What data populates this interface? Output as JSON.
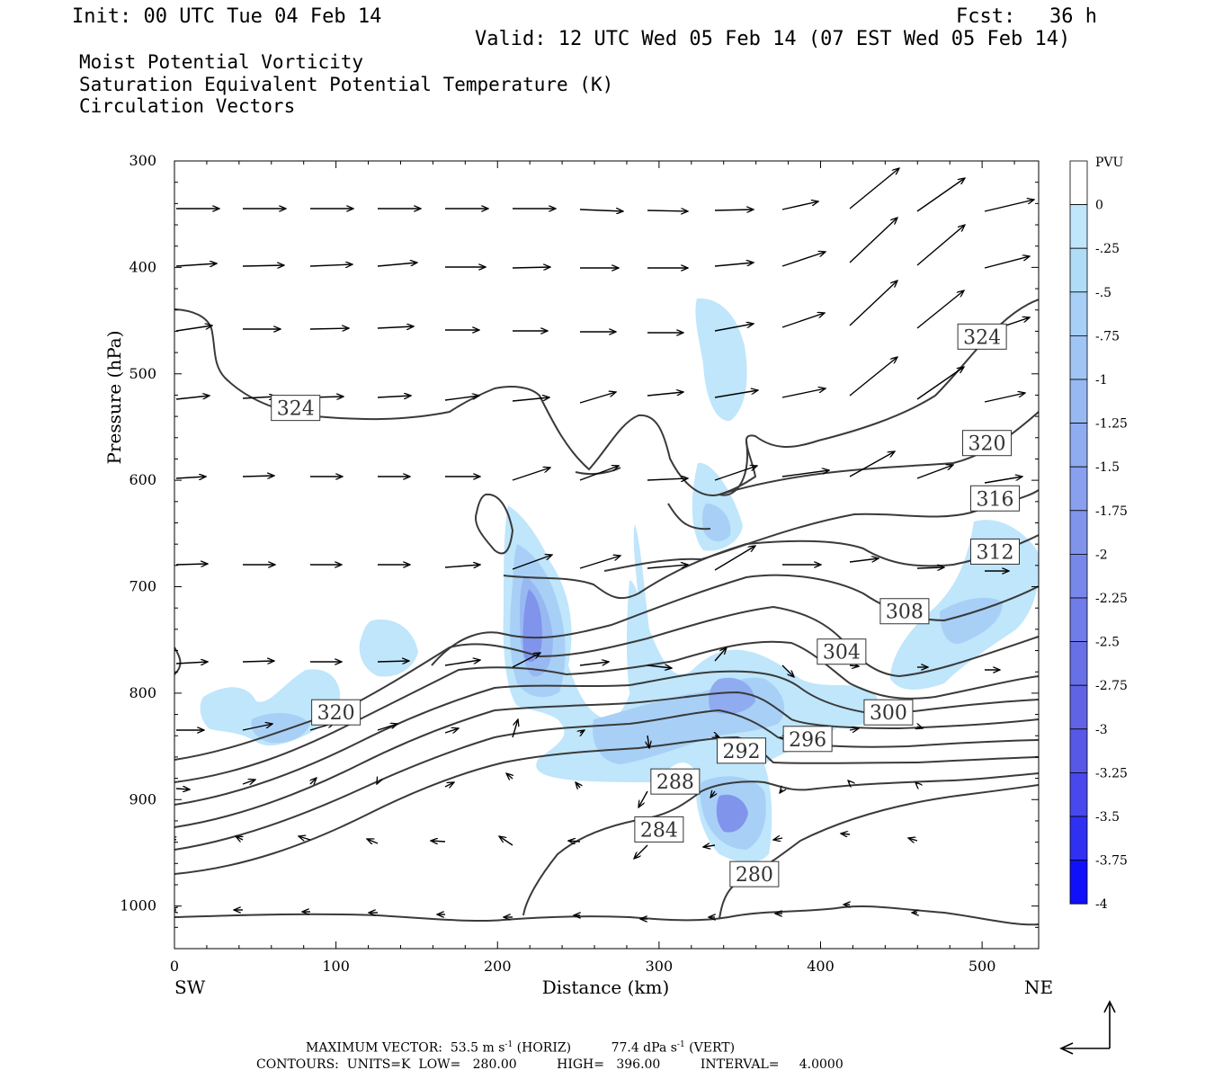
{
  "header": {
    "init": "Init: 00 UTC Tue 04 Feb 14",
    "fcst_label": "Fcst:",
    "fcst_value": "36 h",
    "valid": "Valid: 12 UTC Wed 05 Feb 14 (07 EST Wed 05 Feb 14)"
  },
  "layers": [
    {
      "name": "Moist Potential Vorticity",
      "color": "#000000"
    },
    {
      "name": "Saturation Equivalent Potential Temperature (K)",
      "color": "#808080"
    },
    {
      "name": "Circulation Vectors",
      "color": "#000000"
    }
  ],
  "chart_data": {
    "type": "contour",
    "xlabel": "Distance (km)",
    "ylabel": "Pressure (hPa)",
    "xlim": [
      0,
      535
    ],
    "ylim": [
      1040,
      300
    ],
    "x_ticks": [
      0,
      100,
      200,
      300,
      400,
      500
    ],
    "y_ticks": [
      300,
      400,
      500,
      600,
      700,
      800,
      900,
      1000
    ],
    "endpoints": {
      "left": "SW",
      "right": "NE"
    },
    "contour_labels": [
      {
        "text": "324",
        "x": 75,
        "p": 532
      },
      {
        "text": "324",
        "x": 500,
        "p": 465
      },
      {
        "text": "320",
        "x": 503,
        "p": 565
      },
      {
        "text": "316",
        "x": 508,
        "p": 617
      },
      {
        "text": "312",
        "x": 508,
        "p": 667
      },
      {
        "text": "308",
        "x": 452,
        "p": 723
      },
      {
        "text": "304",
        "x": 413,
        "p": 761
      },
      {
        "text": "300",
        "x": 442,
        "p": 818
      },
      {
        "text": "296",
        "x": 392,
        "p": 843
      },
      {
        "text": "292",
        "x": 351,
        "p": 854
      },
      {
        "text": "288",
        "x": 310,
        "p": 883
      },
      {
        "text": "284",
        "x": 300,
        "p": 928
      },
      {
        "text": "280",
        "x": 359,
        "p": 970
      },
      {
        "text": "320",
        "x": 100,
        "p": 818
      }
    ],
    "colorbar": {
      "title": "PVU",
      "labels": [
        "0",
        "-.25",
        "-.5",
        "-.75",
        "-1",
        "-1.25",
        "-1.5",
        "-1.75",
        "-2",
        "-2.25",
        "-2.5",
        "-2.75",
        "-3",
        "-3.25",
        "-3.5",
        "-3.75",
        "-4"
      ],
      "colors": [
        "#ffffff",
        "#bfe6fb",
        "#b0dcf8",
        "#a8d0f6",
        "#a0c4f4",
        "#98b8f2",
        "#90acf0",
        "#88a0ee",
        "#8094ec",
        "#7888ea",
        "#707ce8",
        "#6870e6",
        "#6064e4",
        "#5858e6",
        "#4848ec",
        "#3030f2",
        "#1010fa"
      ]
    },
    "footer": {
      "max_vector": "MAXIMUM VECTOR:  53.5 m s",
      "max_exp1": "-1",
      "max_horiz": " (HORIZ)          77.4 dPa s",
      "max_exp2": "-1",
      "max_vert": " (VERT)",
      "contours": "CONTOURS:  UNITS=K  LOW=   280.00          HIGH=   396.00          INTERVAL=     4.0000"
    }
  }
}
